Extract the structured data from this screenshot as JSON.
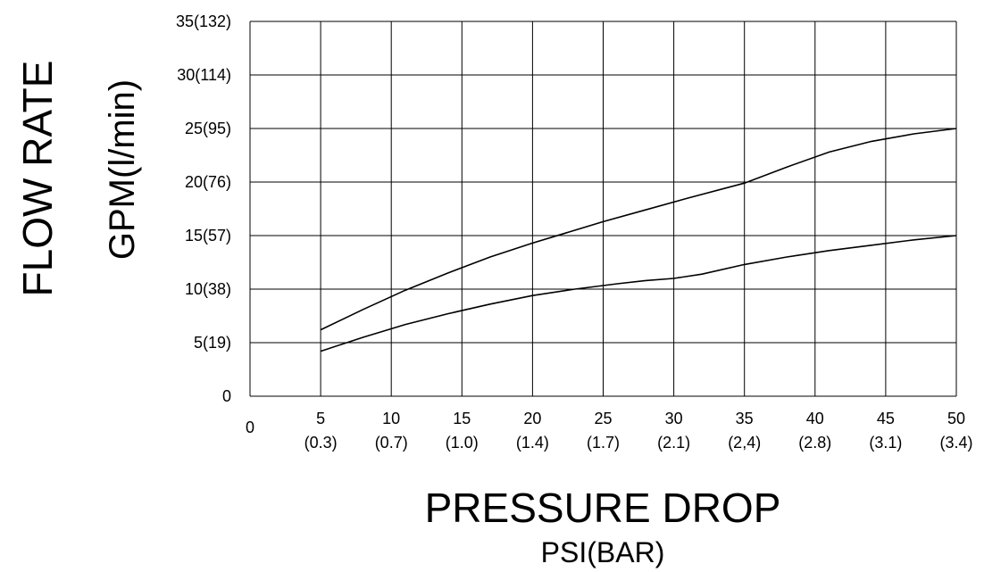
{
  "chart_data": {
    "type": "line",
    "xlim": [
      0,
      50
    ],
    "ylim": [
      0,
      35
    ],
    "grid": true,
    "x_ticks": [
      {
        "value": 0,
        "label": "0",
        "sub": ""
      },
      {
        "value": 5,
        "label": "5",
        "sub": "(0.3)"
      },
      {
        "value": 10,
        "label": "10",
        "sub": "(0.7)"
      },
      {
        "value": 15,
        "label": "15",
        "sub": "(1.0)"
      },
      {
        "value": 20,
        "label": "20",
        "sub": "(1.4)"
      },
      {
        "value": 25,
        "label": "25",
        "sub": "(1.7)"
      },
      {
        "value": 30,
        "label": "30",
        "sub": "(2.1)"
      },
      {
        "value": 35,
        "label": "35",
        "sub": "(2,4)"
      },
      {
        "value": 40,
        "label": "40",
        "sub": "(2.8)"
      },
      {
        "value": 45,
        "label": "45",
        "sub": "(3.1)"
      },
      {
        "value": 50,
        "label": "50",
        "sub": "(3.4)"
      }
    ],
    "y_ticks": [
      {
        "value": 0,
        "label": "0"
      },
      {
        "value": 5,
        "label": "5(19)"
      },
      {
        "value": 10,
        "label": "10(38)"
      },
      {
        "value": 15,
        "label": "15(57)"
      },
      {
        "value": 20,
        "label": "20(76)"
      },
      {
        "value": 25,
        "label": "25(95)"
      },
      {
        "value": 30,
        "label": "30(114)"
      },
      {
        "value": 35,
        "label": "35(132)"
      }
    ],
    "ylabel": "FLOW RATE",
    "ylabel_units": "GPM(l/min)",
    "xlabel": "PRESSURE DROP",
    "xlabel_units": "PSI(BAR)",
    "series": [
      {
        "x": [
          5,
          8,
          11,
          14,
          17,
          20,
          22,
          25,
          28,
          31,
          35,
          38,
          41,
          44,
          47,
          50
        ],
        "y": [
          6.2,
          8.1,
          9.9,
          11.5,
          13.0,
          14.3,
          15.1,
          16.3,
          17.4,
          18.5,
          19.9,
          21.4,
          22.8,
          23.8,
          24.5,
          25.0
        ]
      },
      {
        "x": [
          5,
          8,
          11,
          14,
          17,
          20,
          23,
          26,
          28,
          30,
          32,
          35,
          38,
          41,
          44,
          47,
          50
        ],
        "y": [
          4.2,
          5.5,
          6.7,
          7.7,
          8.6,
          9.4,
          10.0,
          10.5,
          10.8,
          11.0,
          11.4,
          12.3,
          13.0,
          13.6,
          14.1,
          14.6,
          15.0
        ]
      }
    ]
  }
}
